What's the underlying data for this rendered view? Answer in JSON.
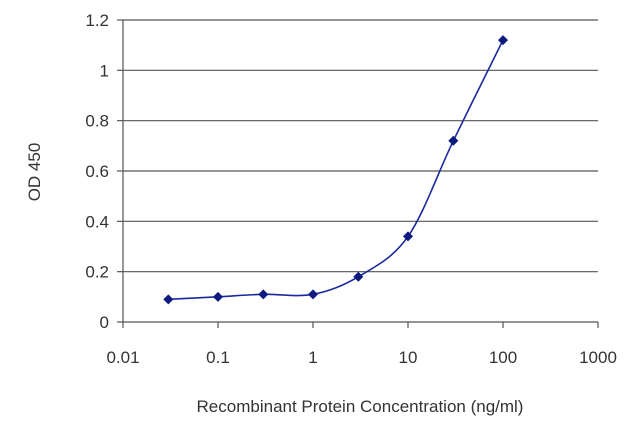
{
  "chart_data": {
    "type": "scatter",
    "xlabel": "Recombinant Protein Concentration (ng/ml)",
    "ylabel": "OD 450",
    "xscale": "log",
    "xlim": [
      0.01,
      1000
    ],
    "ylim": [
      0,
      1.2
    ],
    "x_ticks": [
      0.01,
      0.1,
      1,
      10,
      100,
      1000
    ],
    "x_tick_labels": [
      "0.01",
      "0.1",
      "1",
      "10",
      "100",
      "1000"
    ],
    "y_ticks": [
      0,
      0.2,
      0.4,
      0.6,
      0.8,
      1,
      1.2
    ],
    "y_tick_labels": [
      "0",
      "0.2",
      "0.4",
      "0.6",
      "0.8",
      "1",
      "1.2"
    ],
    "grid": "horizontal",
    "legend": "none",
    "series": [
      {
        "x": [
          0.03,
          0.1,
          0.3,
          1,
          3,
          10,
          30,
          100
        ],
        "y": [
          0.09,
          0.1,
          0.11,
          0.11,
          0.18,
          0.34,
          0.72,
          1.12
        ]
      }
    ],
    "colors": {
      "series": "#1a2a9c",
      "marker": "#0d1a80",
      "grid": "#555555",
      "axis": "#555555"
    }
  }
}
